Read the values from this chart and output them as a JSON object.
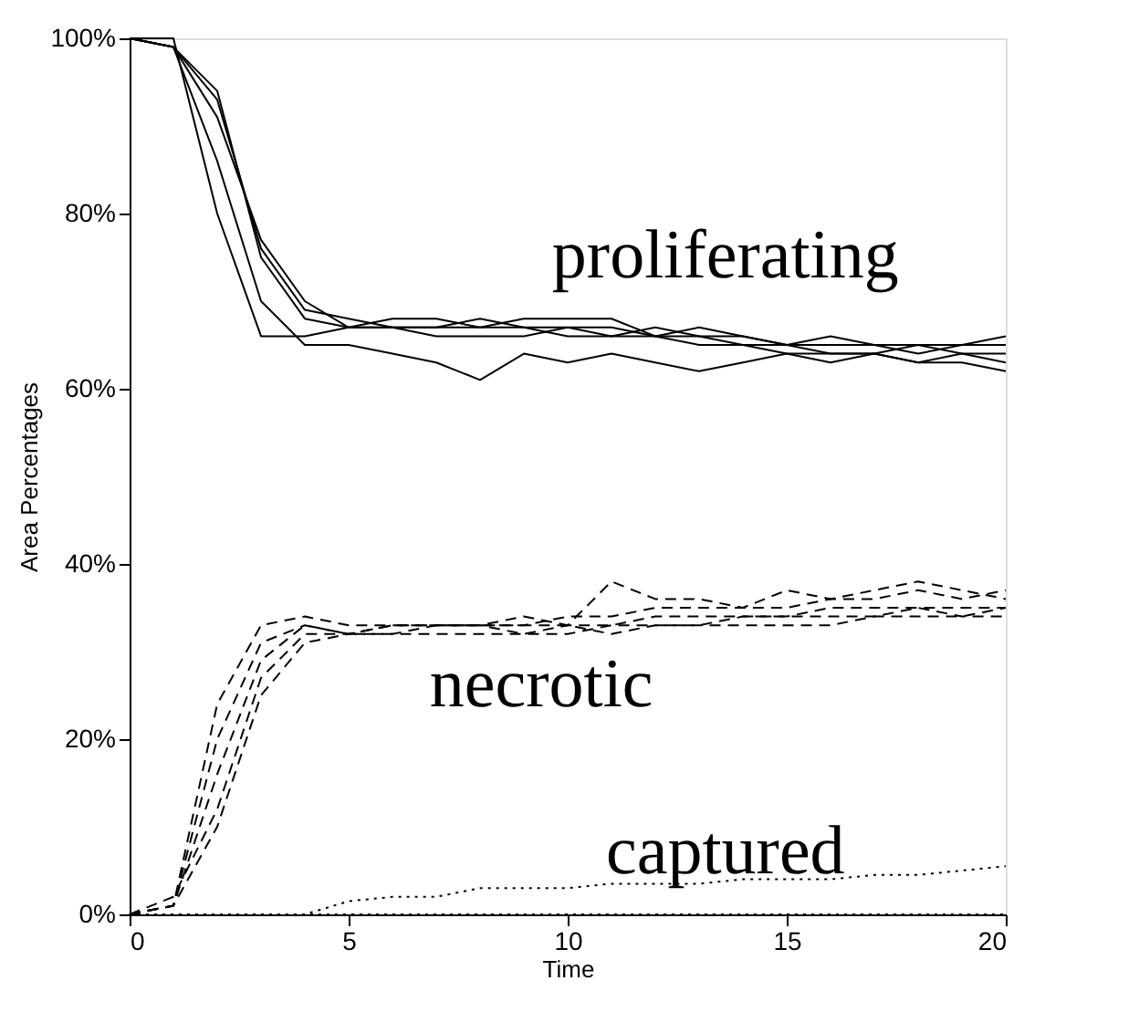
{
  "chart_data": {
    "type": "line",
    "xlabel": "Time",
    "ylabel": "Area Percentages",
    "x": [
      0,
      1,
      2,
      3,
      4,
      5,
      6,
      7,
      8,
      9,
      10,
      11,
      12,
      13,
      14,
      15,
      16,
      17,
      18,
      19,
      20
    ],
    "xlim": [
      0,
      20
    ],
    "xticks": [
      0,
      5,
      10,
      15,
      20
    ],
    "ylim": [
      0,
      100
    ],
    "yticks": [
      {
        "value": 0,
        "label": "0%"
      },
      {
        "value": 20,
        "label": "20%"
      },
      {
        "value": 40,
        "label": "40%"
      },
      {
        "value": 60,
        "label": "60%"
      },
      {
        "value": 80,
        "label": "80%"
      },
      {
        "value": 100,
        "label": "100%"
      }
    ],
    "grid": false,
    "series": [
      {
        "color": "#000000",
        "line_style": "solid",
        "values": [
          100,
          100,
          80,
          66,
          66,
          67,
          67,
          67,
          67,
          67,
          67,
          66,
          66,
          65,
          65,
          64,
          64,
          64,
          63,
          63,
          62
        ]
      },
      {
        "color": "#000000",
        "line_style": "solid",
        "values": [
          100,
          99,
          86,
          70,
          65,
          65,
          64,
          63,
          61,
          64,
          63,
          64,
          63,
          62,
          63,
          64,
          63,
          64,
          65,
          64,
          64
        ]
      },
      {
        "color": "#000000",
        "line_style": "solid",
        "values": [
          100,
          99,
          91,
          77,
          70,
          67,
          68,
          68,
          67,
          68,
          68,
          68,
          66,
          66,
          66,
          65,
          66,
          65,
          65,
          65,
          66
        ]
      },
      {
        "color": "#000000",
        "line_style": "solid",
        "values": [
          100,
          99,
          93,
          76,
          69,
          68,
          67,
          67,
          68,
          67,
          66,
          66,
          67,
          66,
          65,
          65,
          64,
          64,
          63,
          64,
          63
        ]
      },
      {
        "color": "#000000",
        "line_style": "solid",
        "values": [
          100,
          99,
          94,
          75,
          68,
          67,
          67,
          66,
          66,
          66,
          67,
          67,
          66,
          67,
          66,
          65,
          65,
          65,
          64,
          65,
          65
        ]
      },
      {
        "color": "#000000",
        "line_style": "dashed",
        "values": [
          0,
          1,
          24,
          33,
          34,
          33,
          33,
          33,
          33,
          33,
          33,
          32,
          33,
          33,
          34,
          34,
          34,
          34,
          35,
          34,
          34
        ]
      },
      {
        "color": "#000000",
        "line_style": "dashed",
        "values": [
          0,
          1,
          20,
          31,
          33,
          32,
          32,
          33,
          33,
          33,
          34,
          34,
          35,
          35,
          35,
          35,
          36,
          36,
          37,
          36,
          37
        ]
      },
      {
        "color": "#000000",
        "line_style": "dashed",
        "values": [
          0,
          2,
          12,
          27,
          32,
          32,
          33,
          33,
          33,
          34,
          33,
          38,
          36,
          36,
          35,
          37,
          36,
          37,
          38,
          37,
          36
        ]
      },
      {
        "color": "#000000",
        "line_style": "dashed",
        "values": [
          0,
          1,
          10,
          25,
          31,
          32,
          32,
          32,
          32,
          32,
          32,
          33,
          33,
          33,
          33,
          33,
          33,
          34,
          34,
          34,
          35
        ]
      },
      {
        "color": "#000000",
        "line_style": "dashed",
        "values": [
          0,
          1,
          16,
          29,
          33,
          32,
          33,
          33,
          33,
          32,
          33,
          33,
          34,
          34,
          34,
          34,
          35,
          35,
          35,
          35,
          35
        ]
      },
      {
        "color": "#000000",
        "line_style": "dotted",
        "values": [
          0,
          0,
          0,
          0,
          0,
          1.5,
          2,
          2,
          3,
          3,
          3,
          3.5,
          3.5,
          3.5,
          4,
          4,
          4,
          4.5,
          4.5,
          5,
          5.5
        ]
      },
      {
        "color": "#000000",
        "line_style": "dotted",
        "values": [
          0,
          0,
          0,
          0,
          0,
          0,
          0,
          0,
          0,
          0,
          0,
          0,
          0,
          0,
          0,
          0,
          0,
          0,
          0,
          0,
          0
        ]
      }
    ],
    "annotations": [
      "proliferating",
      "necrotic",
      "captured"
    ]
  }
}
